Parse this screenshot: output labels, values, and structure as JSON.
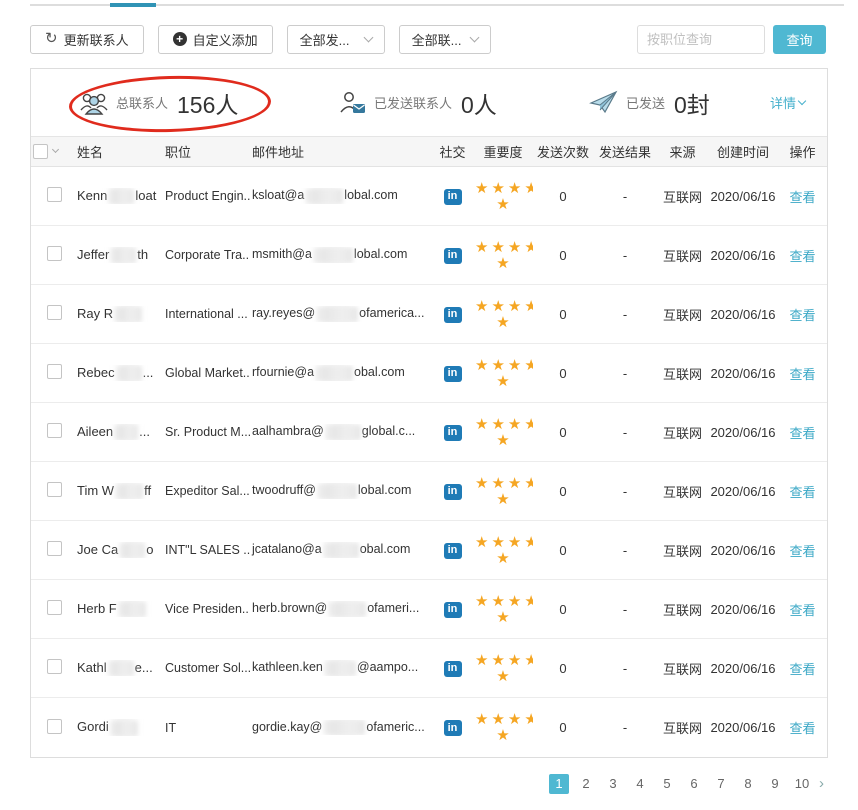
{
  "toolbar": {
    "update_button": "更新联系人",
    "add_button": "自定义添加",
    "filter_send": "全部发...",
    "filter_contact": "全部联...",
    "search_placeholder": "按职位查询",
    "search_button": "查询"
  },
  "stats": {
    "total": {
      "label": "总联系人",
      "value": "156人"
    },
    "sent_contacts": {
      "label": "已发送联系人",
      "value": "0人"
    },
    "sent_mails": {
      "label": "已发送",
      "value": "0封"
    },
    "details": "详情"
  },
  "icons": {
    "linkedin": "in",
    "refresh": "↻",
    "plus": "+"
  },
  "table": {
    "headers": [
      "姓名",
      "职位",
      "邮件地址",
      "社交",
      "重要度",
      "发送次数",
      "发送结果",
      "来源",
      "创建时间",
      "操作"
    ],
    "rows": [
      {
        "name_prefix": "Kenn",
        "name_blur": 26,
        "name_suffix": "loat",
        "position": "Product Engin...",
        "email_prefix": "ksloat@a",
        "email_blur": 38,
        "email_suffix": "lobal.com",
        "social": "linkedin",
        "importance": 5,
        "send_count": "0",
        "send_result": "-",
        "source": "互联网",
        "created": "2020/06/16",
        "action": "查看"
      },
      {
        "name_prefix": "Jeffer",
        "name_blur": 26,
        "name_suffix": "th",
        "position": "Corporate Tra...",
        "email_prefix": "msmith@a",
        "email_blur": 40,
        "email_suffix": "lobal.com",
        "social": "linkedin",
        "importance": 5,
        "send_count": "0",
        "send_result": "-",
        "source": "互联网",
        "created": "2020/06/16",
        "action": "查看"
      },
      {
        "name_prefix": "Ray R",
        "name_blur": 28,
        "name_suffix": "",
        "position": "International ...",
        "email_prefix": "ray.reyes@",
        "email_blur": 42,
        "email_suffix": "ofamerica...",
        "social": "linkedin",
        "importance": 5,
        "send_count": "0",
        "send_result": "-",
        "source": "互联网",
        "created": "2020/06/16",
        "action": "查看"
      },
      {
        "name_prefix": "Rebec",
        "name_blur": 26,
        "name_suffix": "...",
        "position": "Global Market...",
        "email_prefix": "rfournie@a",
        "email_blur": 38,
        "email_suffix": "obal.com",
        "social": "linkedin",
        "importance": 5,
        "send_count": "0",
        "send_result": "-",
        "source": "互联网",
        "created": "2020/06/16",
        "action": "查看"
      },
      {
        "name_prefix": "Aileen",
        "name_blur": 24,
        "name_suffix": "...",
        "position": "Sr. Product M...",
        "email_prefix": "aalhambra@",
        "email_blur": 36,
        "email_suffix": "global.c...",
        "social": "linkedin",
        "importance": 5,
        "send_count": "0",
        "send_result": "-",
        "source": "互联网",
        "created": "2020/06/16",
        "action": "查看"
      },
      {
        "name_prefix": "Tim W",
        "name_blur": 28,
        "name_suffix": "ff",
        "position": "Expeditor Sal...",
        "email_prefix": "twoodruff@",
        "email_blur": 40,
        "email_suffix": "lobal.com",
        "social": "linkedin",
        "importance": 5,
        "send_count": "0",
        "send_result": "-",
        "source": "互联网",
        "created": "2020/06/16",
        "action": "查看"
      },
      {
        "name_prefix": "Joe Ca",
        "name_blur": 26,
        "name_suffix": "o",
        "position": "INT\"L SALES ...",
        "email_prefix": "jcatalano@a",
        "email_blur": 36,
        "email_suffix": "obal.com",
        "social": "linkedin",
        "importance": 5,
        "send_count": "0",
        "send_result": "-",
        "source": "互联网",
        "created": "2020/06/16",
        "action": "查看"
      },
      {
        "name_prefix": "Herb F",
        "name_blur": 28,
        "name_suffix": "",
        "position": "Vice Presiden...",
        "email_prefix": "herb.brown@",
        "email_blur": 38,
        "email_suffix": "ofameri...",
        "social": "linkedin",
        "importance": 5,
        "send_count": "0",
        "send_result": "-",
        "source": "互联网",
        "created": "2020/06/16",
        "action": "查看"
      },
      {
        "name_prefix": "Kathl",
        "name_blur": 26,
        "name_suffix": "e...",
        "position": "Customer Sol...",
        "email_prefix": "kathleen.ken",
        "email_blur": 32,
        "email_suffix": "@aampo...",
        "social": "linkedin",
        "importance": 5,
        "send_count": "0",
        "send_result": "-",
        "source": "互联网",
        "created": "2020/06/16",
        "action": "查看"
      },
      {
        "name_prefix": "Gordi",
        "name_blur": 28,
        "name_suffix": "",
        "position": "IT",
        "email_prefix": "gordie.kay@",
        "email_blur": 42,
        "email_suffix": "ofameric...",
        "social": "linkedin",
        "importance": 5,
        "send_count": "0",
        "send_result": "-",
        "source": "互联网",
        "created": "2020/06/16",
        "action": "查看"
      }
    ]
  },
  "pagination": {
    "pages": [
      "1",
      "2",
      "3",
      "4",
      "5",
      "6",
      "7",
      "8",
      "9",
      "10"
    ],
    "active": "1",
    "next": "›"
  },
  "colors": {
    "accent": "#4FB8D2",
    "link": "#3BA8C6",
    "details_link": "#45B0CC",
    "star": "#F5A623",
    "linkedin_blue": "#1F7BB6",
    "annotation_red": "#E02B1D",
    "tab_indicator": "#3093B5"
  }
}
